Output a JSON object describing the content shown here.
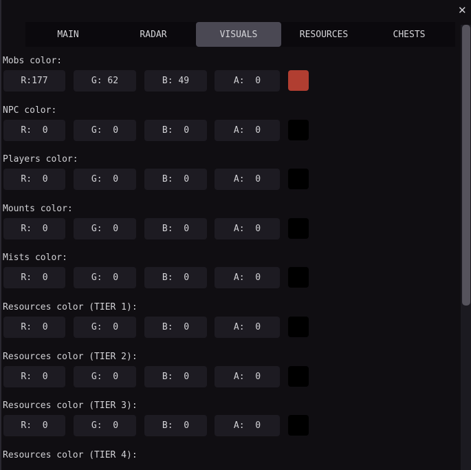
{
  "window": {
    "close_icon": "close-icon"
  },
  "tabs": [
    {
      "label": "MAIN"
    },
    {
      "label": "RADAR"
    },
    {
      "label": "VISUALS",
      "active": true
    },
    {
      "label": "RESOURCES"
    },
    {
      "label": "CHESTS"
    }
  ],
  "sections": [
    {
      "label": "Mobs color:",
      "r": "R:177",
      "g": "G: 62",
      "b": "B: 49",
      "a": "A:  0",
      "swatch": "#b13e31"
    },
    {
      "label": "NPC color:",
      "r": "R:  0",
      "g": "G:  0",
      "b": "B:  0",
      "a": "A:  0",
      "swatch": "#000000"
    },
    {
      "label": "Players color:",
      "r": "R:  0",
      "g": "G:  0",
      "b": "B:  0",
      "a": "A:  0",
      "swatch": "#000000"
    },
    {
      "label": "Mounts color:",
      "r": "R:  0",
      "g": "G:  0",
      "b": "B:  0",
      "a": "A:  0",
      "swatch": "#000000"
    },
    {
      "label": "Mists color:",
      "r": "R:  0",
      "g": "G:  0",
      "b": "B:  0",
      "a": "A:  0",
      "swatch": "#000000"
    },
    {
      "label": "Resources color (TIER 1):",
      "r": "R:  0",
      "g": "G:  0",
      "b": "B:  0",
      "a": "A:  0",
      "swatch": "#000000"
    },
    {
      "label": "Resources color (TIER 2):",
      "r": "R:  0",
      "g": "G:  0",
      "b": "B:  0",
      "a": "A:  0",
      "swatch": "#000000"
    },
    {
      "label": "Resources color (TIER 3):",
      "r": "R:  0",
      "g": "G:  0",
      "b": "B:  0",
      "a": "A:  0",
      "swatch": "#000000"
    },
    {
      "label": "Resources color (TIER 4):"
    }
  ]
}
